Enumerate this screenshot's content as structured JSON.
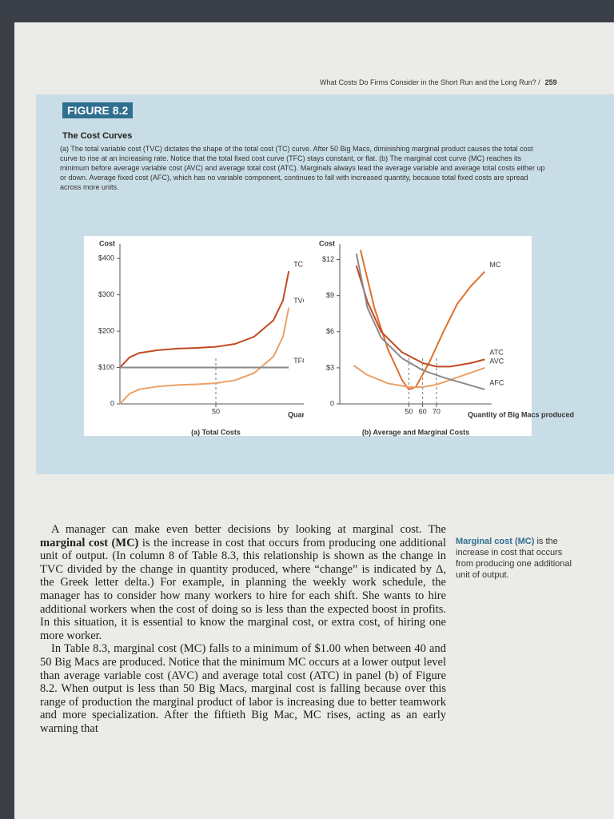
{
  "header": {
    "running_title": "What Costs Do Firms Consider in the Short Run and the Long Run?",
    "separator": "/",
    "page_number": "259"
  },
  "figure": {
    "label": "FIGURE 8.2",
    "title": "The Cost Curves",
    "caption": "(a) The total variable cost (TVC) dictates the shape of the total cost (TC) curve. After 50 Big Macs, diminishing marginal product causes the total cost curve to rise at an increasing rate. Notice that the total fixed cost curve (TFC) stays constant, or flat. (b) The marginal cost curve (MC) reaches its minimum before average variable cost (AVC) and average total cost (ATC). Marginals always lead the average variable and average total costs either up or down. Average fixed cost (AFC), which has no variable component, continues to fall with increased quantity, because total fixed costs are spread across more units."
  },
  "chart_data": [
    {
      "type": "line",
      "caption": "(a) Total Costs",
      "y_label": "Cost",
      "x_label": "Quantity of Big Macs produced",
      "xlim": [
        0,
        100
      ],
      "ylim": [
        0,
        440
      ],
      "xticks": [
        50
      ],
      "yticks": [
        0,
        {
          "value": 100,
          "label": "$100"
        },
        {
          "value": 200,
          "label": "$200"
        },
        {
          "value": 300,
          "label": "$300"
        },
        {
          "value": 400,
          "label": "$400"
        }
      ],
      "series": [
        {
          "name": "TC",
          "color": "#c24a22",
          "x": [
            0,
            5,
            10,
            20,
            30,
            40,
            50,
            60,
            70,
            80,
            85,
            88
          ],
          "values": [
            100,
            128,
            140,
            148,
            152,
            154,
            157,
            165,
            185,
            230,
            285,
            365
          ]
        },
        {
          "name": "TVC",
          "color": "#eaa066",
          "x": [
            0,
            5,
            10,
            20,
            30,
            40,
            50,
            60,
            70,
            80,
            85,
            88
          ],
          "values": [
            0,
            28,
            40,
            48,
            52,
            54,
            57,
            65,
            85,
            130,
            185,
            265
          ]
        },
        {
          "name": "TFC",
          "color": "#8a8a8a",
          "x": [
            0,
            88
          ],
          "values": [
            100,
            100
          ]
        }
      ]
    },
    {
      "type": "line",
      "caption": "(b) Average and Marginal Costs",
      "y_label": "Cost",
      "x_label": "Quantity of Big Macs produced",
      "xlim": [
        0,
        110
      ],
      "ylim": [
        0,
        13.3
      ],
      "xticks": [
        50,
        60,
        70
      ],
      "yticks": [
        0,
        {
          "value": 3,
          "label": "$3"
        },
        {
          "value": 6,
          "label": "$6"
        },
        {
          "value": 9,
          "label": "$9"
        },
        {
          "value": 12,
          "label": "$12"
        }
      ],
      "series": [
        {
          "name": "MC",
          "color": "#e0702c",
          "x": [
            15,
            25,
            35,
            45,
            50,
            55,
            65,
            75,
            85,
            95,
            105
          ],
          "values": [
            12.8,
            8,
            4.5,
            2,
            1.2,
            1.4,
            3.5,
            6,
            8.3,
            9.8,
            11
          ]
        },
        {
          "name": "ATC",
          "color": "#c24a22",
          "x": [
            12,
            20,
            30,
            45,
            60,
            70,
            80,
            95,
            105
          ],
          "values": [
            11.5,
            8.5,
            6,
            4.3,
            3.4,
            3.1,
            3.1,
            3.4,
            3.7
          ]
        },
        {
          "name": "AVC",
          "color": "#eaa066",
          "x": [
            10,
            20,
            35,
            50,
            60,
            70,
            85,
            105
          ],
          "values": [
            3.2,
            2.4,
            1.7,
            1.4,
            1.4,
            1.6,
            2.2,
            3.0
          ]
        },
        {
          "name": "AFC",
          "color": "#8a8a8a",
          "x": [
            12,
            20,
            30,
            45,
            60,
            75,
            90,
            105
          ],
          "values": [
            12.5,
            8,
            5.5,
            3.8,
            2.8,
            2.2,
            1.7,
            1.2
          ]
        }
      ]
    }
  ],
  "body": {
    "paragraphs": [
      [
        "A manager can make even better decisions by looking at marginal cost. The ",
        "marginal cost (MC)",
        " is the increase in cost that occurs from producing one additional unit of output. (In column 8 of Table 8.3, this relationship is shown as the change in TVC divided by the change in quantity produced, where “change” is indicated by Δ, the Greek letter delta.) For example, in planning the weekly work schedule, the manager has to consider how many workers to hire for each shift. She wants to hire additional workers when the cost of doing so is less than the expected boost in profits. In this situation, it is essential to know the marginal cost, or extra cost, of hiring one more worker."
      ],
      [
        "In Table 8.3, marginal cost (MC) falls to a minimum of $1.00 when between 40 and 50 Big Macs are produced. Notice that the minimum MC occurs at a lower output level than average variable cost (AVC) and average total cost (ATC) in panel (b) of Figure 8.2. When output is less than 50 Big Macs, marginal cost is falling because over this range of production the marginal product of labor is increasing due to better teamwork and more specialization. After the fiftieth Big Mac, MC rises, acting as an early warning that"
      ]
    ],
    "margin_note": {
      "term": "Marginal cost (MC)",
      "definition": " is the increase in cost that occurs from producing one additional unit of output."
    }
  }
}
